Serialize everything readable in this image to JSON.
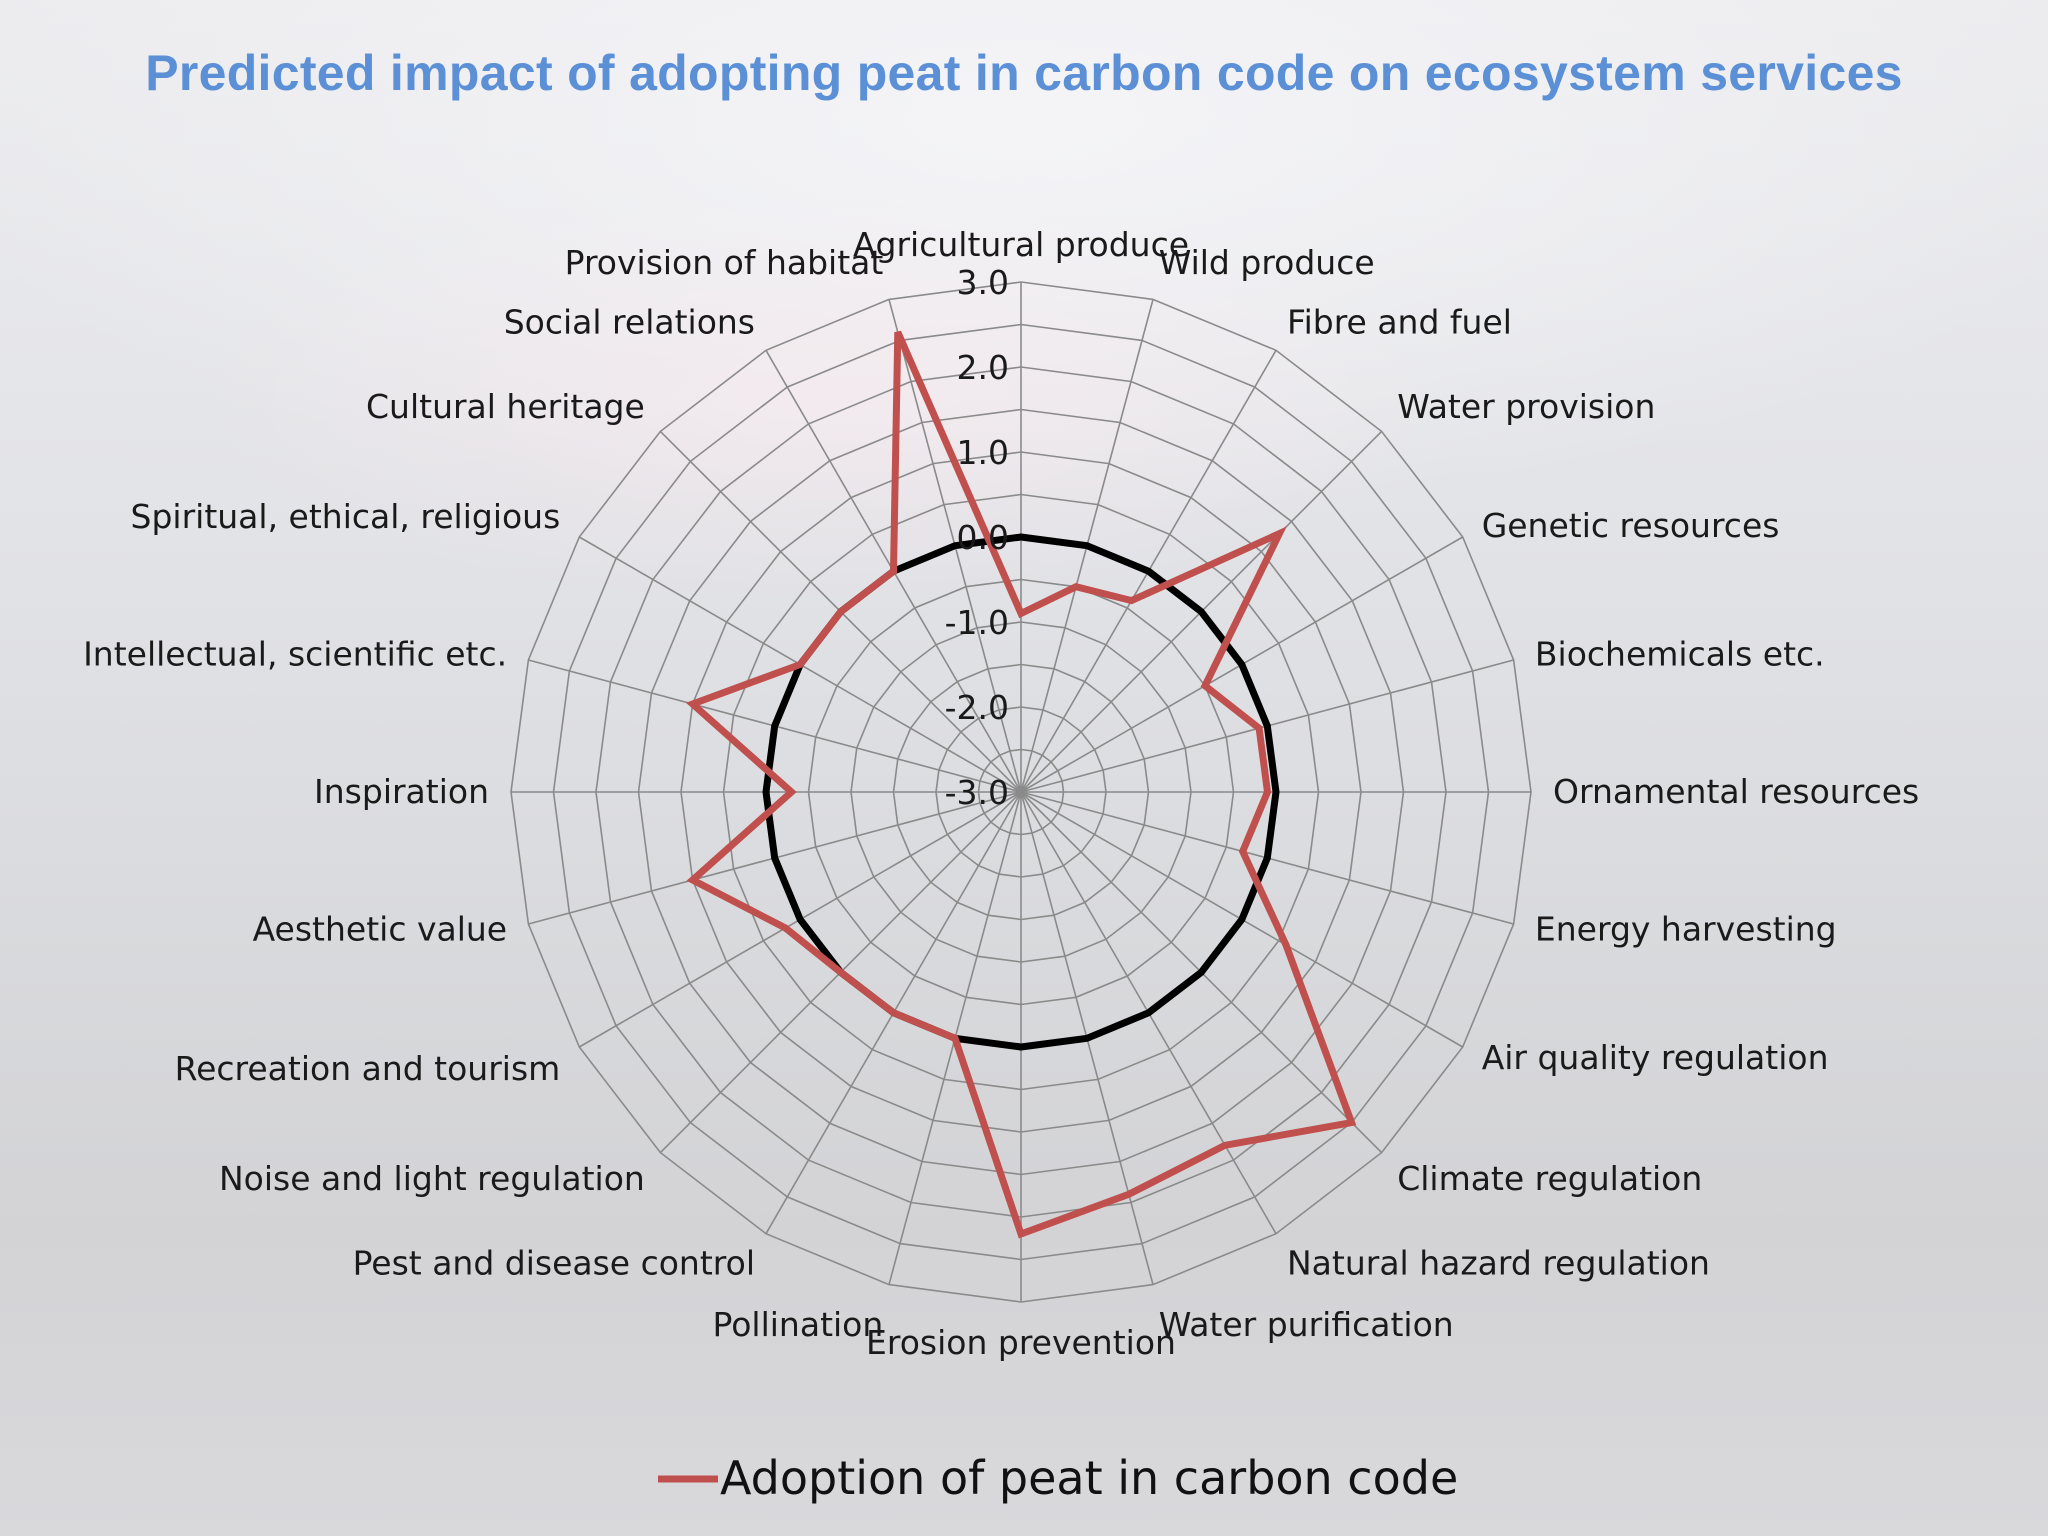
{
  "chart_data": {
    "type": "radar",
    "title": "Predicted impact of adopting peat in carbon code on ecosystem services",
    "categories": [
      "Agricultural produce",
      "Wild produce",
      "Fibre and fuel",
      "Water provision",
      "Genetic resources",
      "Biochemicals etc.",
      "Ornamental resources",
      "Energy harvesting",
      "Air quality regulation",
      "Climate regulation",
      "Natural hazard regulation",
      "Water purification",
      "Erosion prevention",
      "Pollination",
      "Pest and disease control",
      "Noise and light regulation",
      "Recreation and tourism",
      "Aesthetic value",
      "Inspiration",
      "Intellectual, scientific etc.",
      "Spiritual, ethical, religious",
      "Cultural heritage",
      "Social relations",
      "Provision of habitat"
    ],
    "series": [
      {
        "name": "Adoption of peat in carbon code",
        "values": [
          -0.9,
          -0.5,
          -0.4,
          1.3,
          -0.5,
          -0.1,
          -0.1,
          -0.3,
          0.6,
          2.5,
          1.8,
          1.9,
          2.2,
          0.0,
          0.0,
          0.0,
          0.2,
          1.0,
          -0.3,
          1.0,
          0.0,
          0.0,
          0.0,
          2.6
        ],
        "color": "#c0504d"
      }
    ],
    "reference_ring": 0.0,
    "rlim": [
      -3.0,
      3.0
    ],
    "ticks": [
      "3.0",
      "2.0",
      "1.0",
      "0.0",
      "-1.0",
      "-2.0",
      "-3.0"
    ],
    "tick_values": [
      3.0,
      2.0,
      1.0,
      0.0,
      -1.0,
      -2.0,
      -3.0
    ],
    "grid_levels": 12,
    "legend_position": "bottom"
  }
}
